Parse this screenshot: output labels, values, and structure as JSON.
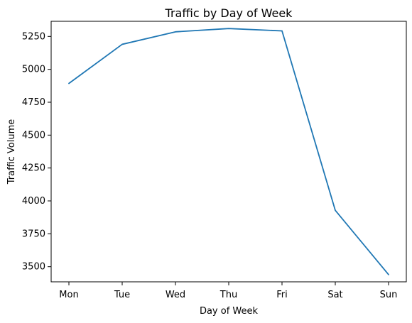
{
  "chart_data": {
    "type": "line",
    "title": "Traffic by Day of Week",
    "xlabel": "Day of Week",
    "ylabel": "Traffic Volume",
    "categories": [
      "Mon",
      "Tue",
      "Wed",
      "Thu",
      "Fri",
      "Sat",
      "Sun"
    ],
    "series": [
      {
        "values": [
          4893,
          5190,
          5285,
          5310,
          5292,
          3928,
          3440
        ],
        "color": "#1f77b4"
      }
    ],
    "ylim": [
      3385,
      5365
    ],
    "yticks": [
      3500,
      3750,
      4000,
      4250,
      4500,
      4750,
      5000,
      5250
    ],
    "grid": false,
    "legend": "none"
  }
}
